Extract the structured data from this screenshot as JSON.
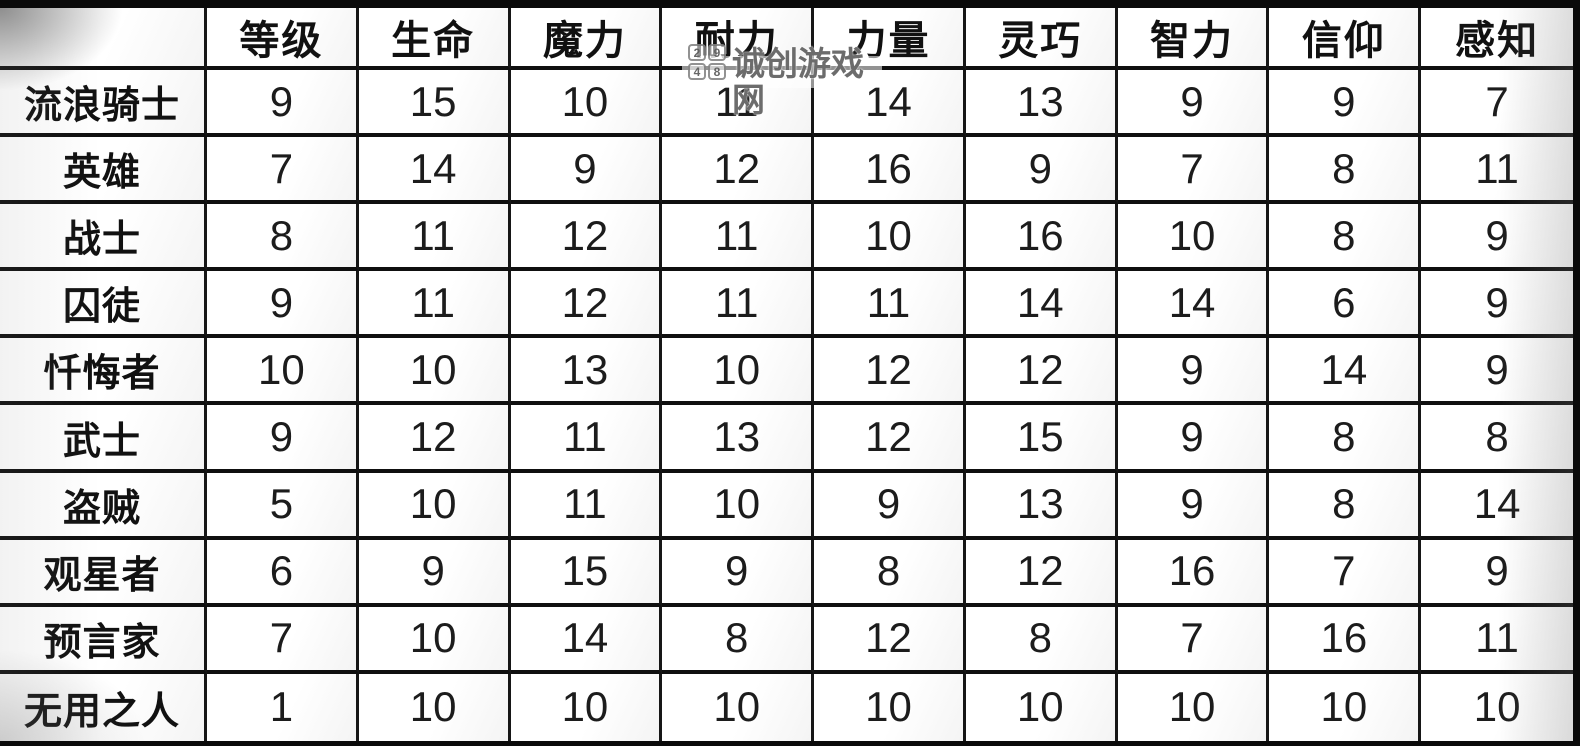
{
  "watermark": {
    "logo_chars": [
      "2",
      "9",
      "4",
      "8"
    ],
    "site_name": "诚创游戏网"
  },
  "chart_data": {
    "type": "table",
    "corner_label": "",
    "columns": [
      "等级",
      "生命",
      "魔力",
      "耐力",
      "力量",
      "灵巧",
      "智力",
      "信仰",
      "感知"
    ],
    "rows": [
      {
        "label": "流浪骑士",
        "values": [
          9,
          15,
          10,
          11,
          14,
          13,
          9,
          9,
          7
        ]
      },
      {
        "label": "英雄",
        "values": [
          7,
          14,
          9,
          12,
          16,
          9,
          7,
          8,
          11
        ]
      },
      {
        "label": "战士",
        "values": [
          8,
          11,
          12,
          11,
          10,
          16,
          10,
          8,
          9
        ]
      },
      {
        "label": "囚徒",
        "values": [
          9,
          11,
          12,
          11,
          11,
          14,
          14,
          6,
          9
        ]
      },
      {
        "label": "忏悔者",
        "values": [
          10,
          10,
          13,
          10,
          12,
          12,
          9,
          14,
          9
        ]
      },
      {
        "label": "武士",
        "values": [
          9,
          12,
          11,
          13,
          12,
          15,
          9,
          8,
          8
        ]
      },
      {
        "label": "盗贼",
        "values": [
          5,
          10,
          11,
          10,
          9,
          13,
          9,
          8,
          14
        ]
      },
      {
        "label": "观星者",
        "values": [
          6,
          9,
          15,
          9,
          8,
          12,
          16,
          7,
          9
        ]
      },
      {
        "label": "预言家",
        "values": [
          7,
          10,
          14,
          8,
          12,
          8,
          7,
          16,
          11
        ]
      },
      {
        "label": "无用之人",
        "values": [
          1,
          10,
          10,
          10,
          10,
          10,
          10,
          10,
          10
        ]
      }
    ]
  },
  "colors": {
    "border": "#0f0f0f",
    "cell_background": "#ffffff",
    "text": "#1c1c1c",
    "watermark_text": "#5f5f5f"
  }
}
